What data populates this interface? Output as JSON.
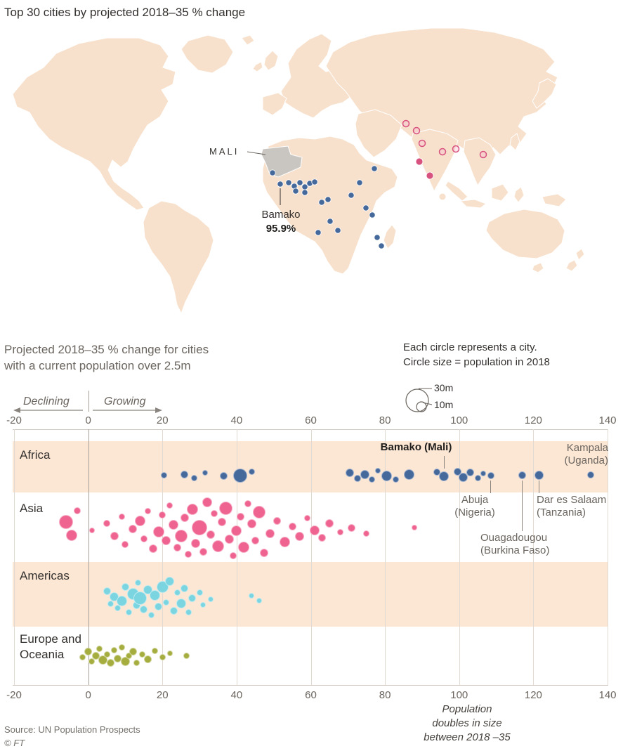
{
  "page": {
    "title": "Top 30 cities by projected 2018–35 % change",
    "source": "Source: UN Population Prospects",
    "copyright": "© FT",
    "background": "#ffffff"
  },
  "map": {
    "country_label": "MALI",
    "city_label": "Bamako",
    "city_value": "95.9%",
    "colors": {
      "land": "#f8e1cc",
      "highlight": "#c9c5c0",
      "africa_dot": "#46699c",
      "asia_dot": "#d8527f"
    },
    "africa_city_dots": [
      [
        388,
        212
      ],
      [
        399,
        228
      ],
      [
        411,
        226
      ],
      [
        419,
        231
      ],
      [
        427,
        226
      ],
      [
        434,
        232
      ],
      [
        441,
        227
      ],
      [
        448,
        225
      ],
      [
        434,
        240
      ],
      [
        421,
        238
      ],
      [
        458,
        254
      ],
      [
        467,
        250
      ],
      [
        500,
        244
      ],
      [
        512,
        226
      ],
      [
        533,
        206
      ],
      [
        521,
        262
      ],
      [
        530,
        272
      ],
      [
        470,
        281
      ],
      [
        481,
        294
      ],
      [
        453,
        297
      ],
      [
        537,
        304
      ],
      [
        543,
        316
      ]
    ],
    "asia_city_dots_open": [
      [
        578,
        142
      ],
      [
        593,
        152
      ],
      [
        601,
        170
      ],
      [
        630,
        182
      ],
      [
        649,
        178
      ],
      [
        688,
        186
      ]
    ],
    "asia_city_dots_filled": [
      [
        612,
        216
      ],
      [
        597,
        196
      ]
    ]
  },
  "legend": {
    "note_line1": "Each circle represents a city.",
    "note_line2": "Circle size = population in 2018",
    "size_big": "30m",
    "size_small": "10m",
    "declining": "Declining",
    "growing": "Growing"
  },
  "chart": {
    "subtitle_line1": "Projected 2018–35 % change for cities",
    "subtitle_line2": "with a current population over 2.5m",
    "axis_ticks": [
      -20,
      0,
      20,
      40,
      60,
      80,
      100,
      120,
      140
    ],
    "callouts": {
      "bamako": {
        "line1": "Bamako (Mali)"
      },
      "kampala": {
        "line1": "Kampala",
        "line2": "(Uganda)"
      },
      "abuja": {
        "line1": "Abuja",
        "line2": "(Nigeria)"
      },
      "dar_es_salaam": {
        "line1": "Dar es Salaam",
        "line2": "(Tanzania)"
      },
      "ouagadougou": {
        "line1": "Ouagadougou",
        "line2": "(Burkina Faso)"
      }
    },
    "population_note": {
      "line1": "Population",
      "line2": "doubles in size",
      "line3": "between 2018 –35"
    }
  },
  "chart_data": {
    "type": "scatter",
    "subtype": "beeswarm",
    "title": "Projected 2018–35 % change for cities with a current population over 2.5m",
    "xlabel": "Projected 2018–35 % change",
    "xlim": [
      -20,
      140
    ],
    "x_ticks": [
      -20,
      0,
      20,
      40,
      60,
      80,
      100,
      120,
      140
    ],
    "grid": true,
    "size_encoding": "circle size = population in 2018",
    "size_legend_m": [
      30,
      10
    ],
    "point_format": "[pct_change, radius_px, y_jitter_px]",
    "highlighted_cities": [
      {
        "city": "Bamako",
        "country": "Mali",
        "value": 95.9
      },
      {
        "city": "Kampala",
        "country": "Uganda",
        "value": 135.5
      },
      {
        "city": "Dar es Salaam",
        "country": "Tanzania",
        "value": 121.5
      },
      {
        "city": "Ouagadougou",
        "country": "Burkina Faso",
        "value": 117
      },
      {
        "city": "Abuja",
        "country": "Nigeria",
        "value": 108.5
      }
    ],
    "series": [
      {
        "name": "Africa",
        "color": "#46699c",
        "band_color": "#fce7d5",
        "points": [
          [
            20.5,
            4.5,
            0
          ],
          [
            26,
            5.5,
            -1
          ],
          [
            28.5,
            4.5,
            4
          ],
          [
            31.5,
            4,
            -3
          ],
          [
            36.5,
            5.5,
            1
          ],
          [
            41,
            10,
            1
          ],
          [
            44,
            4.5,
            -5
          ],
          [
            70.5,
            6,
            -3
          ],
          [
            72.5,
            5,
            5
          ],
          [
            74.5,
            6.5,
            -1
          ],
          [
            76.5,
            4.5,
            6
          ],
          [
            78,
            4,
            -6
          ],
          [
            80.5,
            7.5,
            1
          ],
          [
            83,
            4.5,
            6
          ],
          [
            86.5,
            7.5,
            -1
          ],
          [
            94,
            5,
            -4
          ],
          [
            95.9,
            7,
            2
          ],
          [
            99.5,
            5.5,
            -5
          ],
          [
            101,
            6.5,
            3
          ],
          [
            103,
            5.5,
            -4
          ],
          [
            105,
            4.5,
            4
          ],
          [
            106.5,
            4,
            -2
          ],
          [
            108.5,
            5,
            1
          ],
          [
            117,
            5.5,
            0
          ],
          [
            121.5,
            6.5,
            0
          ],
          [
            135.5,
            5,
            0
          ]
        ]
      },
      {
        "name": "Asia",
        "color": "#ef6390",
        "band_color": "#ffffff",
        "points": [
          [
            -6,
            10,
            -10
          ],
          [
            -4.5,
            8,
            9
          ],
          [
            -3,
            5,
            -26
          ],
          [
            1,
            4,
            2
          ],
          [
            5,
            5,
            -8
          ],
          [
            7,
            6,
            10
          ],
          [
            9,
            4.5,
            -18
          ],
          [
            10,
            5,
            22
          ],
          [
            12,
            6,
            0
          ],
          [
            14,
            7.5,
            -12
          ],
          [
            15,
            5,
            14
          ],
          [
            16,
            4.5,
            -26
          ],
          [
            17.5,
            6,
            28
          ],
          [
            19,
            8,
            4
          ],
          [
            20,
            5,
            -20
          ],
          [
            21,
            6.5,
            16
          ],
          [
            22,
            4.5,
            -34
          ],
          [
            23,
            7,
            -6
          ],
          [
            24,
            5.5,
            26
          ],
          [
            25,
            9,
            10
          ],
          [
            26,
            6,
            -16
          ],
          [
            27,
            5,
            36
          ],
          [
            28,
            8,
            -28
          ],
          [
            29,
            6.5,
            20
          ],
          [
            30,
            11,
            -2
          ],
          [
            31,
            5.5,
            32
          ],
          [
            32,
            7,
            -38
          ],
          [
            33,
            6,
            8
          ],
          [
            34,
            5,
            -22
          ],
          [
            35,
            8.5,
            24
          ],
          [
            36,
            6,
            -10
          ],
          [
            37,
            9.5,
            -30
          ],
          [
            38,
            6.5,
            14
          ],
          [
            39,
            5,
            38
          ],
          [
            40,
            7.5,
            2
          ],
          [
            41,
            5.5,
            -18
          ],
          [
            42,
            8,
            26
          ],
          [
            43,
            5,
            -36
          ],
          [
            44,
            6.5,
            -8
          ],
          [
            45,
            5.5,
            16
          ],
          [
            46,
            9,
            -24
          ],
          [
            47.5,
            6,
            34
          ],
          [
            49,
            6.5,
            6
          ],
          [
            51,
            5.5,
            -12
          ],
          [
            53,
            7.5,
            18
          ],
          [
            55,
            5.5,
            -4
          ],
          [
            57,
            6.5,
            10
          ],
          [
            59,
            4.5,
            -16
          ],
          [
            61,
            7,
            2
          ],
          [
            63,
            5.5,
            12
          ],
          [
            65,
            6,
            -8
          ],
          [
            68,
            4.5,
            4
          ],
          [
            71,
            5.5,
            -2
          ],
          [
            75,
            4.5,
            6
          ],
          [
            88,
            4,
            -2
          ]
        ]
      },
      {
        "name": "Americas",
        "color": "#7bd5e0",
        "band_color": "#fce7d5",
        "points": [
          [
            5,
            5.5,
            -10
          ],
          [
            6,
            4.5,
            8
          ],
          [
            7,
            6.5,
            -2
          ],
          [
            8,
            4.5,
            14
          ],
          [
            9,
            7.5,
            4
          ],
          [
            10,
            5.5,
            -16
          ],
          [
            11,
            4.5,
            20
          ],
          [
            12,
            8.5,
            -6
          ],
          [
            13,
            5.5,
            10
          ],
          [
            13.5,
            4.5,
            -22
          ],
          [
            14,
            9.5,
            0
          ],
          [
            15,
            5.5,
            16
          ],
          [
            16,
            6.5,
            -12
          ],
          [
            17,
            4.5,
            24
          ],
          [
            18,
            7.5,
            -4
          ],
          [
            19,
            5.5,
            12
          ],
          [
            20,
            8.5,
            -16
          ],
          [
            21,
            4.5,
            6
          ],
          [
            22,
            6.5,
            -24
          ],
          [
            23,
            5.5,
            18
          ],
          [
            24,
            4.5,
            -8
          ],
          [
            25,
            7,
            8
          ],
          [
            26,
            5.5,
            -14
          ],
          [
            27,
            4.5,
            20
          ],
          [
            28,
            5.5,
            0
          ],
          [
            30,
            4.5,
            -8
          ],
          [
            31,
            4,
            10
          ],
          [
            33,
            4,
            2
          ],
          [
            44,
            4,
            -3
          ],
          [
            46,
            4,
            4
          ]
        ]
      },
      {
        "name": "Europe and Oceania",
        "color": "#a5ad3f",
        "band_color": "#ffffff",
        "points": [
          [
            -1.5,
            4.5,
            2
          ],
          [
            0,
            5.5,
            -6
          ],
          [
            1,
            4.5,
            8
          ],
          [
            2,
            5.5,
            0
          ],
          [
            3,
            4.5,
            -10
          ],
          [
            4,
            6.5,
            6
          ],
          [
            5,
            4.5,
            -2
          ],
          [
            6,
            5.5,
            10
          ],
          [
            7,
            4.5,
            -8
          ],
          [
            8,
            5.5,
            4
          ],
          [
            9,
            4.5,
            -12
          ],
          [
            10,
            6.5,
            8
          ],
          [
            11,
            4.5,
            0
          ],
          [
            12,
            5.5,
            -6
          ],
          [
            13,
            4.5,
            10
          ],
          [
            14.5,
            4.5,
            -2
          ],
          [
            16,
            5.5,
            5
          ],
          [
            18,
            4.5,
            -7
          ],
          [
            20,
            4.5,
            2
          ],
          [
            22,
            4,
            -3
          ],
          [
            26.5,
            4.5,
            0
          ]
        ]
      }
    ]
  }
}
